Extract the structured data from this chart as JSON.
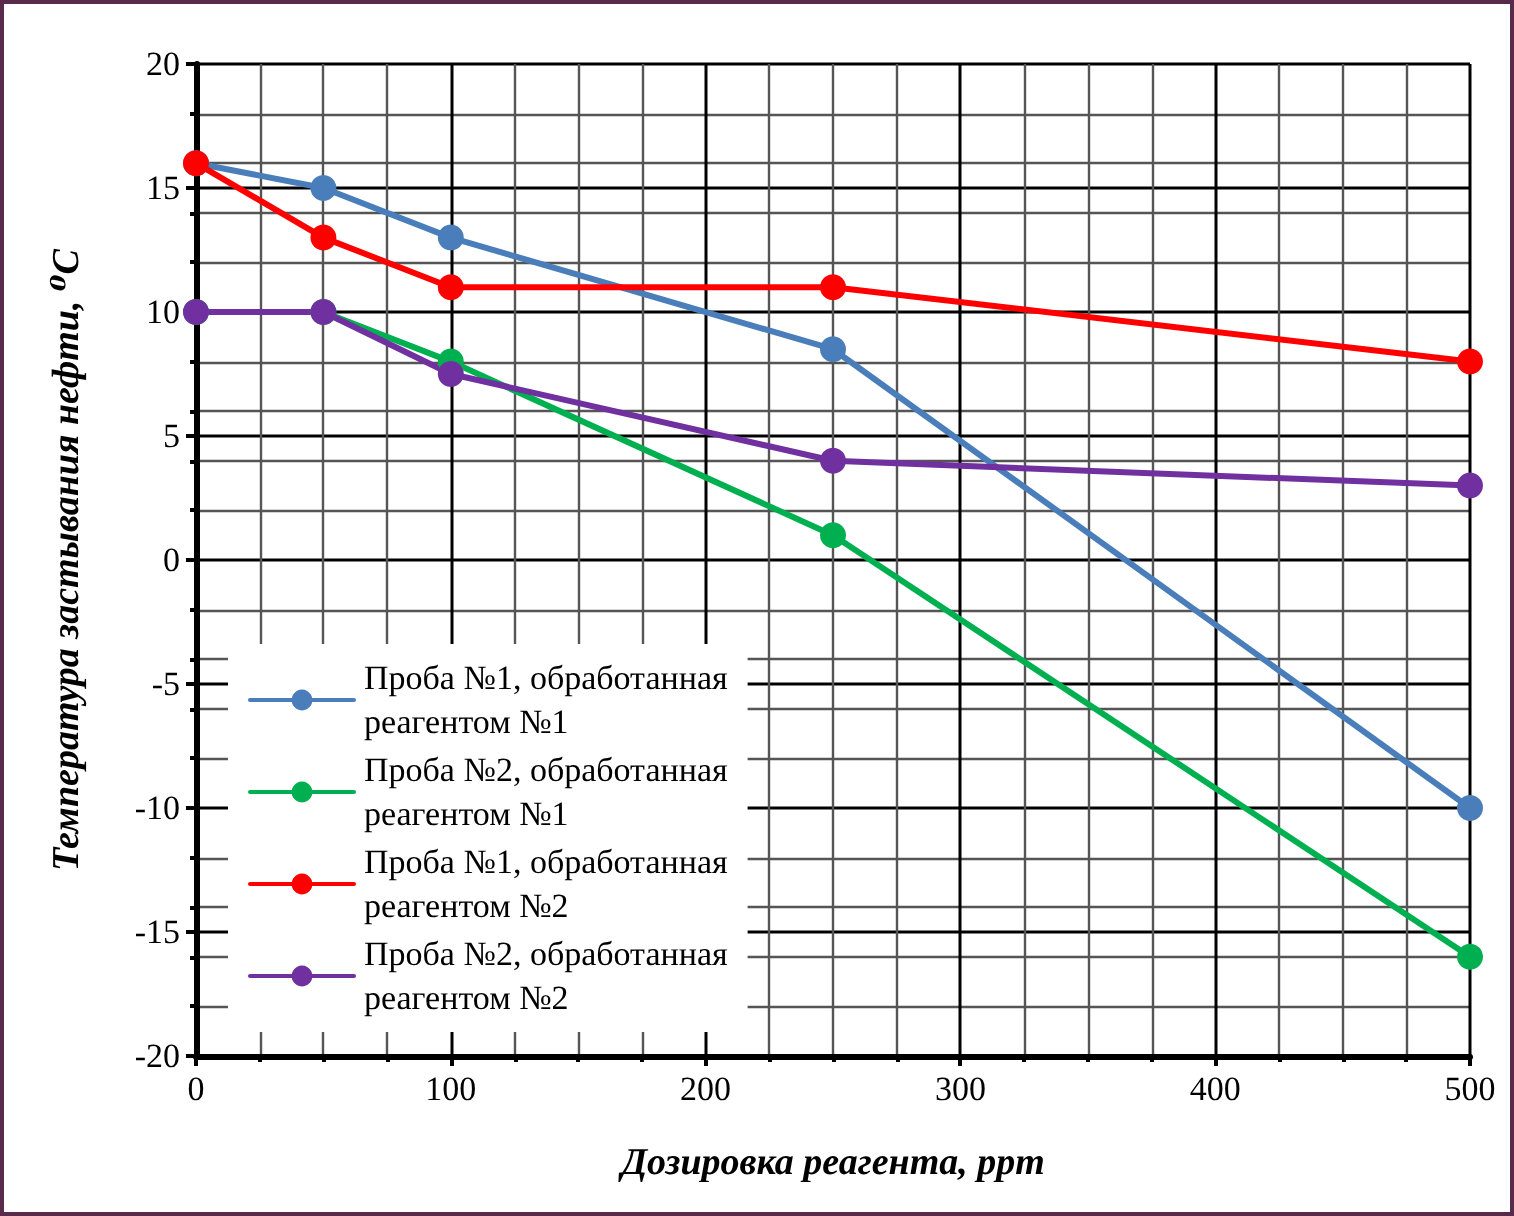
{
  "chart_data": {
    "type": "line",
    "xlabel": "Дозировка реагента, ppm",
    "ylabel": "Температура застывания нефти, ⁰C",
    "x": [
      0,
      50,
      100,
      250,
      500
    ],
    "series": [
      {
        "name": "Проба №1, обработанная реагентом №1",
        "color": "#4a7ebb",
        "values": [
          16,
          15,
          13,
          8.5,
          -10
        ]
      },
      {
        "name": "Проба №2, обработанная реагентом №1",
        "color": "#00b050",
        "values": [
          10,
          10,
          8,
          1,
          -16
        ]
      },
      {
        "name": "Проба №1, обработанная реагентом №2",
        "color": "#ff0000",
        "values": [
          16,
          13,
          11,
          11,
          8
        ]
      },
      {
        "name": "Проба №2, обработанная реагентом №2",
        "color": "#7030a0",
        "values": [
          10,
          10,
          7.5,
          4,
          3
        ]
      }
    ],
    "xlim": [
      0,
      500
    ],
    "xticks": [
      0,
      100,
      200,
      300,
      400,
      500
    ],
    "ylim": [
      -20,
      20
    ],
    "yticks": [
      -20,
      -15,
      -10,
      -5,
      0,
      5,
      10,
      15,
      20
    ],
    "grid": true,
    "legend": "bottom left",
    "marker": "circle",
    "line_style": "solid"
  }
}
